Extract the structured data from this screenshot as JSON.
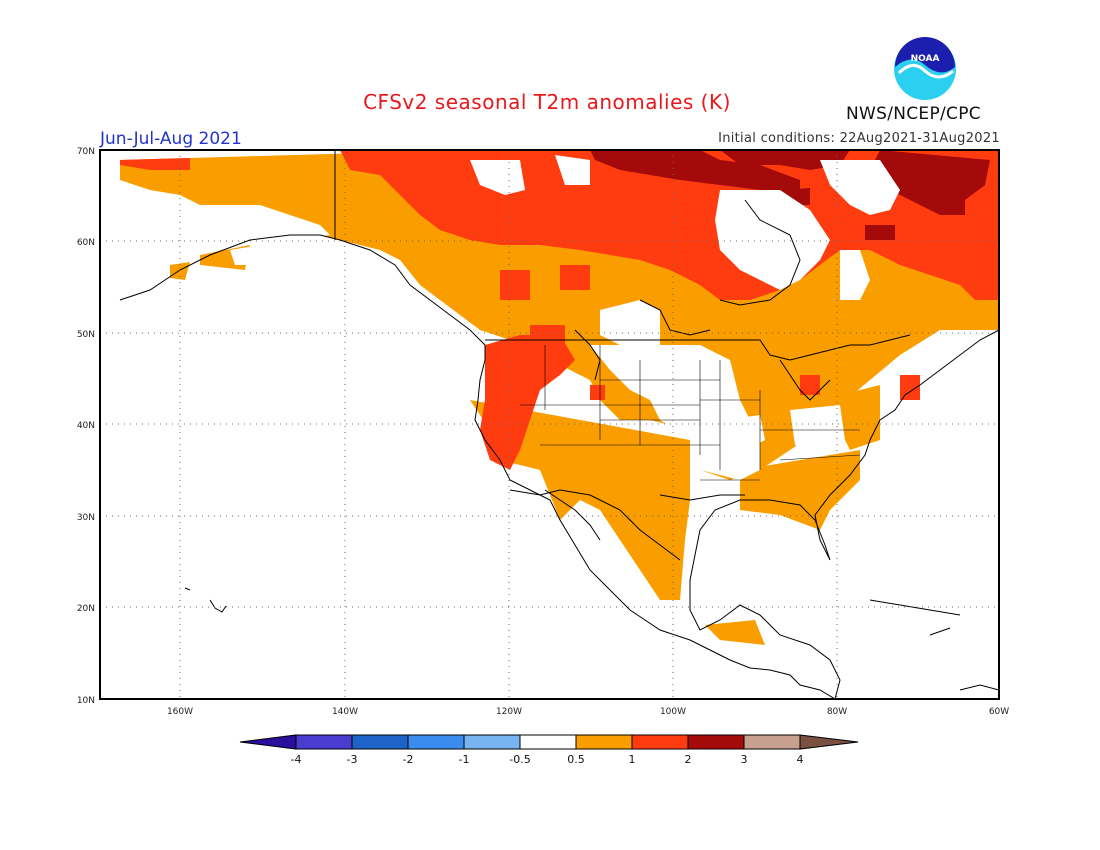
{
  "header": {
    "title": "CFSv2 seasonal T2m anomalies (K)",
    "period": "Jun-Jul-Aug 2021",
    "initial_conditions": "Initial conditions: 22Aug2021-31Aug2021",
    "agency": "NWS/NCEP/CPC",
    "logo_text": "NOAA"
  },
  "map": {
    "region": "North America",
    "lon_range": [
      -172,
      -60
    ],
    "lat_range": [
      10,
      70
    ],
    "lat_ticks": [
      "10N",
      "20N",
      "30N",
      "40N",
      "50N",
      "60N",
      "70N"
    ],
    "lon_ticks": [
      "160W",
      "140W",
      "120W",
      "100W",
      "80W",
      "60W"
    ],
    "gridlines": "dotted"
  },
  "colorbar": {
    "labels": [
      "-4",
      "-3",
      "-2",
      "-1",
      "-0.5",
      "0.5",
      "1",
      "2",
      "3",
      "4"
    ],
    "colors": [
      "#2a0f9e",
      "#4a3ccf",
      "#1e64c8",
      "#3c8cf0",
      "#78b4f0",
      "#ffffff",
      "#fa9e00",
      "#ff3c10",
      "#a50a0a",
      "#c8a090",
      "#7a5040"
    ]
  },
  "anomaly_colors": {
    "0.5-1": "#fa9e00",
    "1-2": "#ff3c10",
    "2-3": "#a50a0a",
    "neutral": "#ffffff"
  }
}
